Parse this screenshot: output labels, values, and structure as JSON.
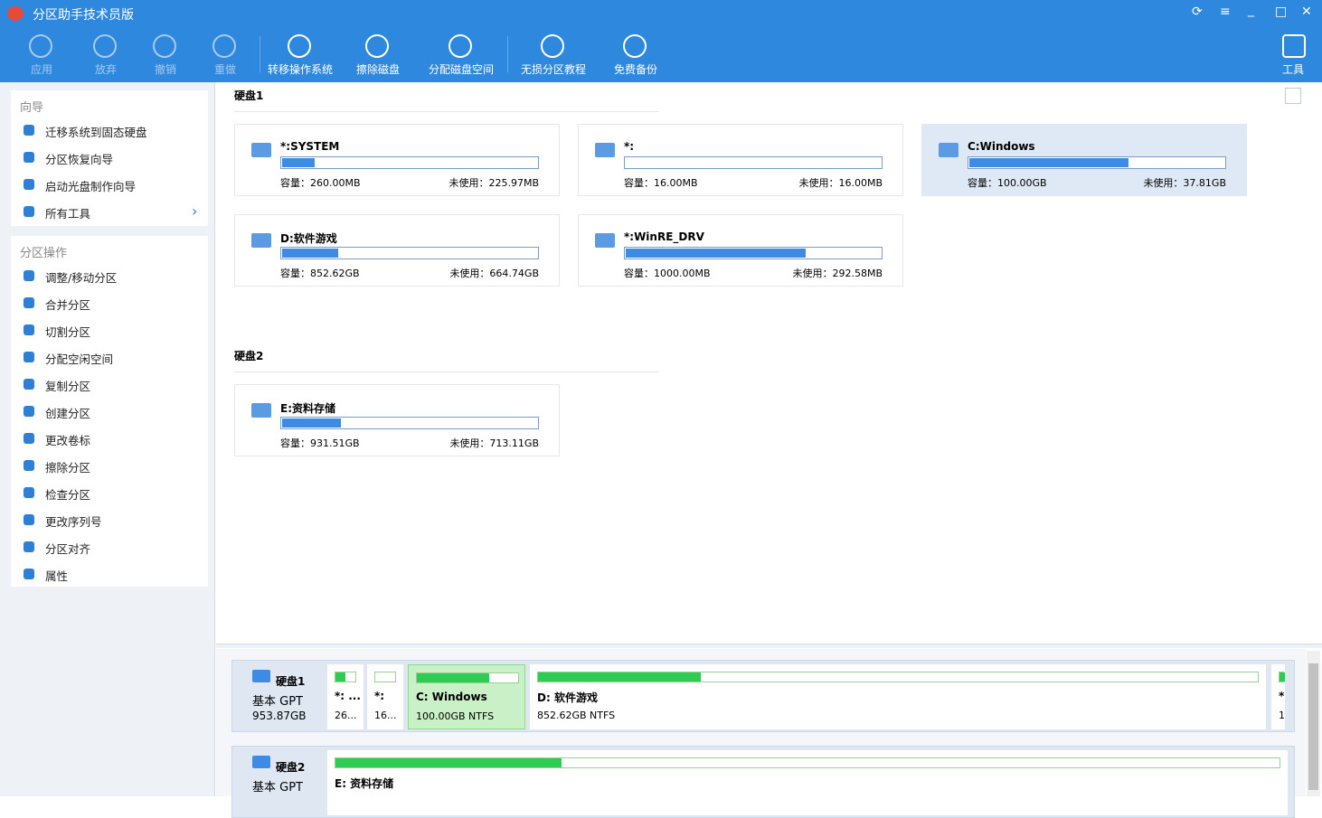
{
  "window": {
    "title": "分区助手技术员版"
  },
  "toolbar": {
    "items": [
      {
        "label": "应用",
        "enabled": false
      },
      {
        "label": "放弃",
        "enabled": false
      },
      {
        "label": "撤销",
        "enabled": false
      },
      {
        "label": "重做",
        "enabled": false
      },
      {
        "label": "转移操作系统",
        "enabled": true
      },
      {
        "label": "擦除磁盘",
        "enabled": true
      },
      {
        "label": "分配磁盘空间",
        "enabled": true
      },
      {
        "label": "无损分区教程",
        "enabled": true
      },
      {
        "label": "免费备份",
        "enabled": true
      }
    ],
    "tools": "工具"
  },
  "sidebar": {
    "wizard": {
      "title": "向导",
      "items": [
        "迁移系统到固态硬盘",
        "分区恢复向导",
        "启动光盘制作向导",
        "所有工具"
      ]
    },
    "operations": {
      "title": "分区操作",
      "items": [
        "调整/移动分区",
        "合并分区",
        "切割分区",
        "分配空闲空间",
        "复制分区",
        "创建分区",
        "更改卷标",
        "擦除分区",
        "检查分区",
        "更改序列号",
        "分区对齐",
        "属性"
      ]
    }
  },
  "disks": [
    {
      "title": "硬盘1",
      "partitions": [
        {
          "name": "*:SYSTEM",
          "capacity": "容量：260.00MB",
          "unused": "未使用：225.97MB"
        },
        {
          "name": "*:",
          "capacity": "容量：16.00MB",
          "unused": "未使用：16.00MB"
        },
        {
          "name": "C:Windows",
          "capacity": "容量：100.00GB",
          "unused": "未使用：37.81GB",
          "selected": true
        },
        {
          "name": "D:软件游戏",
          "capacity": "容量：852.62GB",
          "unused": "未使用：664.74GB"
        },
        {
          "name": "*:WinRE_DRV",
          "capacity": "容量：1000.00MB",
          "unused": "未使用：292.58MB"
        }
      ]
    },
    {
      "title": "硬盘2",
      "partitions": [
        {
          "name": "E:资料存储",
          "capacity": "容量：931.51GB",
          "unused": "未使用：713.11GB"
        }
      ]
    }
  ],
  "disk_map": [
    {
      "name": "硬盘1",
      "type": "基本 GPT",
      "size": "953.87GB",
      "partitions": [
        {
          "name": "*: ...",
          "info": "26..."
        },
        {
          "name": "*:",
          "info": "16..."
        },
        {
          "name": "C: Windows",
          "info": "100.00GB NTFS",
          "selected": true
        },
        {
          "name": "D: 软件游戏",
          "info": "852.62GB NTFS"
        },
        {
          "name": "*.",
          "info": "1."
        }
      ]
    },
    {
      "name": "硬盘2",
      "type": "基本 GPT",
      "partitions": [
        {
          "name": "E: 资料存储"
        }
      ]
    }
  ]
}
